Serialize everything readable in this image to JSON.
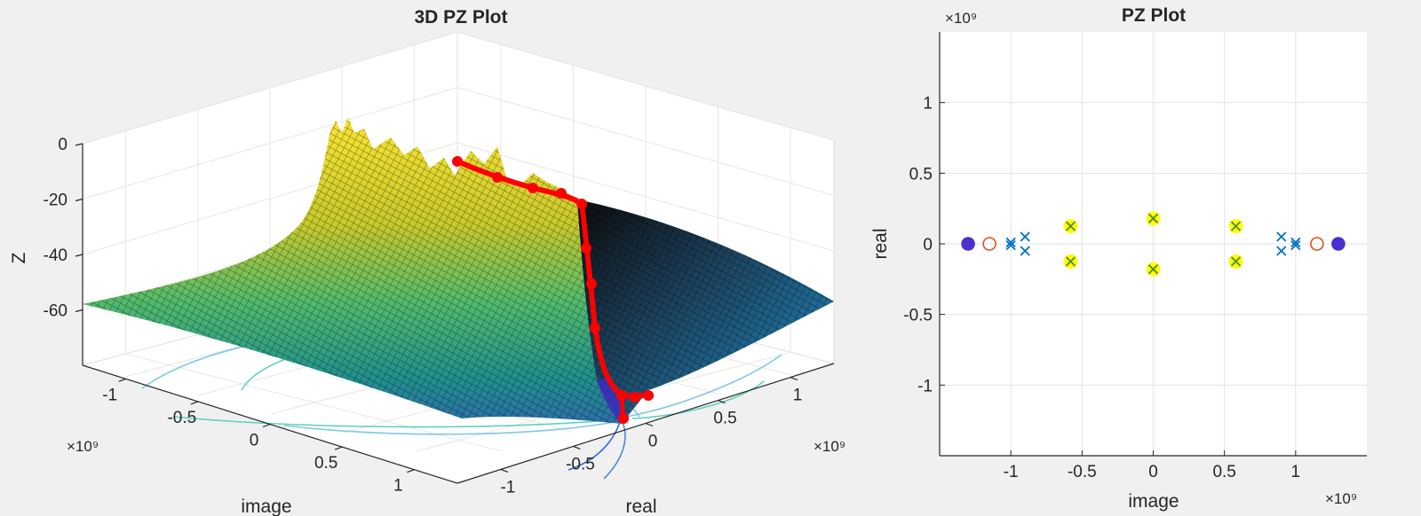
{
  "chart_data": [
    {
      "type": "surface",
      "title": "3D PZ Plot",
      "xlabel": "image",
      "ylabel": "real",
      "zlabel": "Z",
      "x_exponent": "×10⁹",
      "y_exponent": "×10⁹",
      "xlim": [
        -1.3,
        1.3
      ],
      "ylim": [
        -1.3,
        1.3
      ],
      "zlim": [
        -80,
        0
      ],
      "x_ticks": [
        "-1",
        "-0.5",
        "0",
        "0.5",
        "1"
      ],
      "y_ticks": [
        "-1",
        "-0.5",
        "0",
        "0.5",
        "1"
      ],
      "z_ticks": [
        "0",
        "-20",
        "-40",
        "-60"
      ],
      "colormap": "parula",
      "trace_color": "#ff0000",
      "contour_levels": [
        "#7ec8e3",
        "#5dd0c0",
        "#9ed36a",
        "#e6d35a"
      ],
      "grid": true
    },
    {
      "type": "scatter",
      "title": "PZ Plot",
      "xlabel": "image",
      "ylabel": "real",
      "x_exponent": "×10⁹",
      "y_exponent": "×10⁹",
      "xlim": [
        -1.5,
        1.5
      ],
      "ylim": [
        -1.5,
        1.5
      ],
      "x_ticks": [
        "-1",
        "-0.5",
        "0",
        "0.5",
        "1"
      ],
      "y_ticks": [
        "1",
        "0.5",
        "0",
        "-0.5",
        "-1"
      ],
      "grid": true,
      "series": [
        {
          "marker": "o",
          "color": "#d9541a",
          "points": [
            [
              -1.15,
              0
            ],
            [
              1.15,
              0
            ]
          ]
        },
        {
          "marker": "o",
          "color": "#4b2fd0",
          "filled": true,
          "points": [
            [
              -1.3,
              0
            ],
            [
              1.3,
              0
            ]
          ]
        },
        {
          "marker": "x",
          "color": "#0072bd",
          "points": [
            [
              -1.0,
              0.01
            ],
            [
              -1.0,
              -0.01
            ],
            [
              -0.9,
              0.05
            ],
            [
              -0.9,
              -0.05
            ],
            [
              1.0,
              0.01
            ],
            [
              1.0,
              -0.01
            ],
            [
              0.9,
              0.05
            ],
            [
              0.9,
              -0.05
            ]
          ]
        },
        {
          "marker": "x",
          "color": "#4d8a3a",
          "highlight": "#ffff00",
          "points": [
            [
              -0.58,
              0.125
            ],
            [
              -0.58,
              -0.125
            ],
            [
              0.0,
              0.18
            ],
            [
              0.0,
              -0.18
            ],
            [
              0.58,
              0.125
            ],
            [
              0.58,
              -0.125
            ]
          ]
        }
      ]
    }
  ]
}
